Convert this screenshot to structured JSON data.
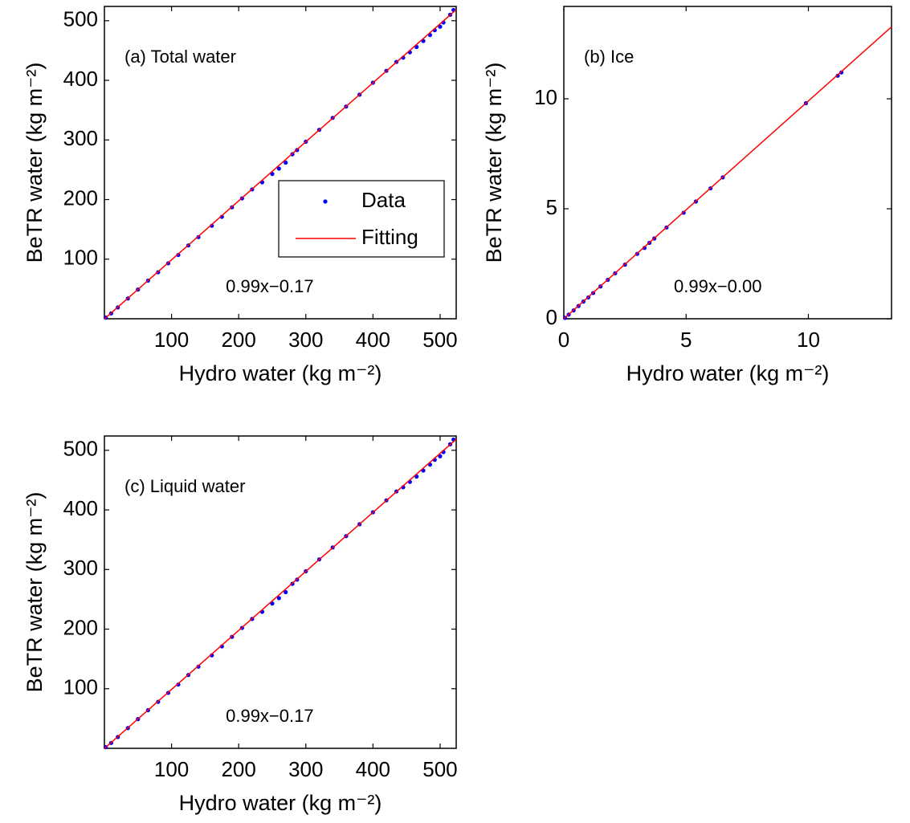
{
  "chart_data": [
    {
      "type": "scatter",
      "title": "(a) Total water",
      "xlabel": "Hydro water (kg m⁻²)",
      "ylabel": "BeTR water (kg m⁻²)",
      "annotation": "0.99x−0.17",
      "xlim": [
        0,
        524
      ],
      "ylim": [
        0,
        524
      ],
      "xticks": [
        100,
        200,
        300,
        400,
        500
      ],
      "yticks": [
        100,
        200,
        300,
        400,
        500
      ],
      "legend_position": "center right",
      "series": [
        {
          "name": "Data",
          "color": "#0000ff",
          "style": "marker",
          "x": [
            2,
            10,
            20,
            35,
            50,
            65,
            80,
            95,
            110,
            125,
            140,
            160,
            175,
            190,
            205,
            220,
            235,
            250,
            260,
            270,
            280,
            287,
            300,
            320,
            340,
            360,
            380,
            400,
            420,
            435,
            445,
            455,
            465,
            475,
            485,
            492,
            500,
            505,
            515,
            520
          ],
          "values": [
            2,
            9,
            19,
            34,
            49,
            64,
            78,
            93,
            107,
            123,
            137,
            156,
            171,
            187,
            202,
            217,
            229,
            243,
            252,
            262,
            276,
            283,
            297,
            317,
            337,
            356,
            376,
            396,
            416,
            431,
            438,
            447,
            456,
            466,
            476,
            484,
            490,
            497,
            510,
            518
          ]
        },
        {
          "name": "Fitting",
          "color": "#ff0000",
          "style": "line",
          "x": [
            0,
            524
          ],
          "values": [
            -0.17,
            518.6
          ]
        }
      ]
    },
    {
      "type": "scatter",
      "title": "(b) Ice",
      "xlabel": "Hydro water (kg m⁻²)",
      "ylabel": "BeTR water (kg m⁻²)",
      "annotation": "0.99x−0.00",
      "xlim": [
        0,
        13.4
      ],
      "ylim": [
        0,
        14.2
      ],
      "xticks": [
        0,
        5,
        10
      ],
      "yticks": [
        0,
        5,
        10
      ],
      "series": [
        {
          "name": "Data",
          "color": "#0000ff",
          "style": "marker",
          "x": [
            0.05,
            0.2,
            0.4,
            0.6,
            0.8,
            1.0,
            1.2,
            1.5,
            1.8,
            2.1,
            2.5,
            3.0,
            3.3,
            3.5,
            3.7,
            4.2,
            4.9,
            5.4,
            6.0,
            6.5,
            9.9,
            11.2,
            11.35
          ],
          "values": [
            0.04,
            0.19,
            0.38,
            0.58,
            0.78,
            0.97,
            1.17,
            1.47,
            1.77,
            2.07,
            2.46,
            2.95,
            3.22,
            3.45,
            3.65,
            4.15,
            4.82,
            5.33,
            5.93,
            6.43,
            9.8,
            11.05,
            11.2
          ]
        },
        {
          "name": "Fitting",
          "color": "#ff0000",
          "style": "line",
          "x": [
            0,
            13.4
          ],
          "values": [
            0,
            13.27
          ]
        }
      ]
    },
    {
      "type": "scatter",
      "title": "(c) Liquid water",
      "xlabel": "Hydro water (kg m⁻²)",
      "ylabel": "BeTR water (kg m⁻²)",
      "annotation": "0.99x−0.17",
      "xlim": [
        0,
        524
      ],
      "ylim": [
        0,
        524
      ],
      "xticks": [
        100,
        200,
        300,
        400,
        500
      ],
      "yticks": [
        100,
        200,
        300,
        400,
        500
      ],
      "series": [
        {
          "name": "Data",
          "color": "#0000ff",
          "style": "marker",
          "x": [
            2,
            10,
            20,
            35,
            50,
            65,
            80,
            95,
            110,
            125,
            140,
            160,
            175,
            190,
            205,
            220,
            235,
            250,
            260,
            270,
            280,
            287,
            300,
            320,
            340,
            360,
            380,
            400,
            420,
            435,
            445,
            455,
            465,
            475,
            485,
            492,
            500,
            505,
            515,
            520
          ],
          "values": [
            2,
            9,
            19,
            34,
            49,
            64,
            78,
            93,
            107,
            123,
            137,
            156,
            171,
            187,
            202,
            217,
            229,
            243,
            252,
            262,
            276,
            283,
            297,
            317,
            337,
            356,
            376,
            396,
            416,
            431,
            438,
            447,
            456,
            466,
            476,
            484,
            490,
            497,
            510,
            518
          ]
        },
        {
          "name": "Fitting",
          "color": "#ff0000",
          "style": "line",
          "x": [
            0,
            524
          ],
          "values": [
            -0.17,
            518.6
          ]
        }
      ]
    }
  ]
}
